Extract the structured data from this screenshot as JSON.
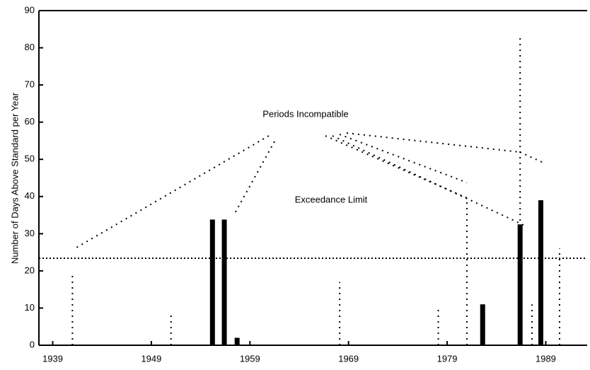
{
  "chart_data": {
    "type": "bar",
    "y_label": "Number of Days Above Standard per Year",
    "annotations": [
      "Periods Incompatible",
      "Exceedance Limit"
    ],
    "threshold": 23.4,
    "series": [
      {
        "style": "solid",
        "color": "#000000",
        "x": [
          1955.2,
          1956.4,
          1957.7,
          1982.6,
          1986.4,
          1988.5
        ],
        "values": [
          33.8,
          33.8,
          2,
          11,
          32.5,
          39
        ]
      },
      {
        "style": "dotted",
        "color": "#000000",
        "x": [
          1941,
          1951,
          1968.1,
          1978.1,
          1981,
          1986.4,
          1987.6,
          1990.4
        ],
        "values": [
          19.6,
          9,
          17,
          10.6,
          38.6,
          83,
          11,
          26
        ]
      }
    ],
    "xlim": [
      1937.6,
      1993.2
    ],
    "xticks": [
      1939,
      1949,
      1959,
      1969,
      1979,
      1989
    ],
    "ylim": [
      0,
      90
    ],
    "yticks": [
      0,
      10,
      20,
      30,
      40,
      50,
      60,
      70,
      80,
      90
    ]
  }
}
